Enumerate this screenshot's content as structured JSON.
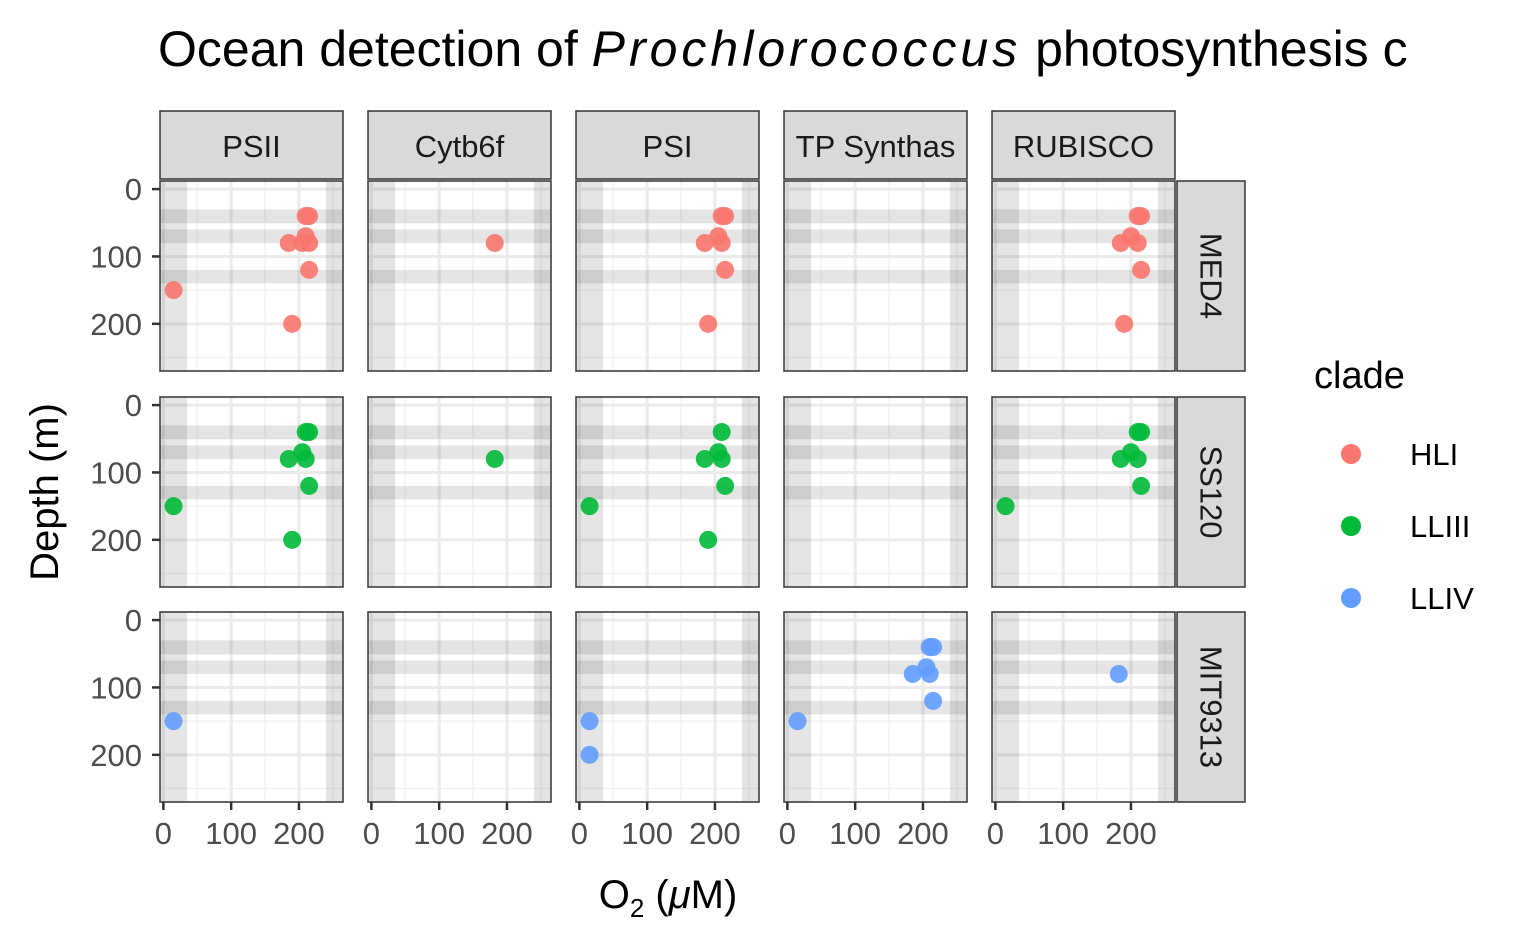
{
  "chart_data": {
    "type": "scatter",
    "title": {
      "prefix": "Ocean detection of ",
      "italic": "Prochlorococcus",
      "suffix": " photosynthesis c"
    },
    "xlabel": {
      "base": "O",
      "sub": "2",
      "open": " (",
      "mu": "μ",
      "rest": "M)"
    },
    "ylabel": "Depth (m)",
    "xlim": [
      -5,
      265
    ],
    "ylim": [
      270,
      -12
    ],
    "x_ticks": [
      "0",
      "100",
      "200"
    ],
    "x_tick_values": [
      0,
      100,
      200
    ],
    "y_ticks": [
      "0",
      "100",
      "200"
    ],
    "y_tick_values": [
      0,
      100,
      200
    ],
    "columns": [
      "PSII",
      "Cytb6f",
      "PSI",
      "TP Synthas",
      "RUBISCO"
    ],
    "rows": [
      "MED4",
      "SS120",
      "MIT9313"
    ],
    "legend": {
      "title": "clade",
      "position": "right",
      "items": [
        {
          "label": "HLI",
          "color": "#F8766D"
        },
        {
          "label": "LLIII",
          "color": "#00BA38"
        },
        {
          "label": "LLIV",
          "color": "#619CFF"
        }
      ]
    },
    "shading": {
      "vertical_bands": [
        [
          -5,
          35
        ],
        [
          240,
          265
        ]
      ],
      "horizontal_bands": [
        [
          30,
          50
        ],
        [
          60,
          80
        ],
        [
          120,
          140
        ]
      ]
    },
    "panels": [
      {
        "row": "MED4",
        "col": "PSII",
        "clade": "HLI",
        "points": [
          [
            15,
            150
          ],
          [
            185,
            80
          ],
          [
            190,
            200
          ],
          [
            205,
            80
          ],
          [
            210,
            40
          ],
          [
            215,
            40
          ],
          [
            210,
            70
          ],
          [
            215,
            80
          ],
          [
            215,
            120
          ]
        ]
      },
      {
        "row": "MED4",
        "col": "Cytb6f",
        "clade": "HLI",
        "points": [
          [
            182,
            80
          ]
        ]
      },
      {
        "row": "MED4",
        "col": "PSI",
        "clade": "HLI",
        "points": [
          [
            185,
            80
          ],
          [
            190,
            200
          ],
          [
            205,
            70
          ],
          [
            210,
            40
          ],
          [
            215,
            40
          ],
          [
            210,
            80
          ],
          [
            215,
            120
          ]
        ]
      },
      {
        "row": "MED4",
        "col": "TP Synthas",
        "clade": "HLI",
        "points": []
      },
      {
        "row": "MED4",
        "col": "RUBISCO",
        "clade": "HLI",
        "points": [
          [
            185,
            80
          ],
          [
            190,
            200
          ],
          [
            200,
            70
          ],
          [
            210,
            40
          ],
          [
            215,
            40
          ],
          [
            210,
            80
          ],
          [
            215,
            120
          ]
        ]
      },
      {
        "row": "SS120",
        "col": "PSII",
        "clade": "LLIII",
        "points": [
          [
            15,
            150
          ],
          [
            185,
            80
          ],
          [
            190,
            200
          ],
          [
            205,
            70
          ],
          [
            210,
            40
          ],
          [
            215,
            40
          ],
          [
            210,
            80
          ],
          [
            215,
            120
          ]
        ]
      },
      {
        "row": "SS120",
        "col": "Cytb6f",
        "clade": "LLIII",
        "points": [
          [
            182,
            80
          ]
        ]
      },
      {
        "row": "SS120",
        "col": "PSI",
        "clade": "LLIII",
        "points": [
          [
            15,
            150
          ],
          [
            185,
            80
          ],
          [
            190,
            200
          ],
          [
            205,
            70
          ],
          [
            210,
            40
          ],
          [
            210,
            80
          ],
          [
            215,
            120
          ]
        ]
      },
      {
        "row": "SS120",
        "col": "TP Synthas",
        "clade": "LLIII",
        "points": []
      },
      {
        "row": "SS120",
        "col": "RUBISCO",
        "clade": "LLIII",
        "points": [
          [
            15,
            150
          ],
          [
            185,
            80
          ],
          [
            200,
            70
          ],
          [
            210,
            40
          ],
          [
            215,
            40
          ],
          [
            210,
            80
          ],
          [
            215,
            120
          ]
        ]
      },
      {
        "row": "MIT9313",
        "col": "PSII",
        "clade": "LLIV",
        "points": [
          [
            15,
            150
          ]
        ]
      },
      {
        "row": "MIT9313",
        "col": "Cytb6f",
        "clade": "LLIV",
        "points": []
      },
      {
        "row": "MIT9313",
        "col": "PSI",
        "clade": "LLIV",
        "points": [
          [
            15,
            150
          ],
          [
            15,
            200
          ]
        ]
      },
      {
        "row": "MIT9313",
        "col": "TP Synthas",
        "clade": "LLIV",
        "points": [
          [
            15,
            150
          ],
          [
            185,
            80
          ],
          [
            205,
            70
          ],
          [
            210,
            40
          ],
          [
            215,
            40
          ],
          [
            210,
            80
          ],
          [
            215,
            120
          ]
        ]
      },
      {
        "row": "MIT9313",
        "col": "RUBISCO",
        "clade": "LLIV",
        "points": [
          [
            182,
            80
          ]
        ]
      }
    ]
  }
}
